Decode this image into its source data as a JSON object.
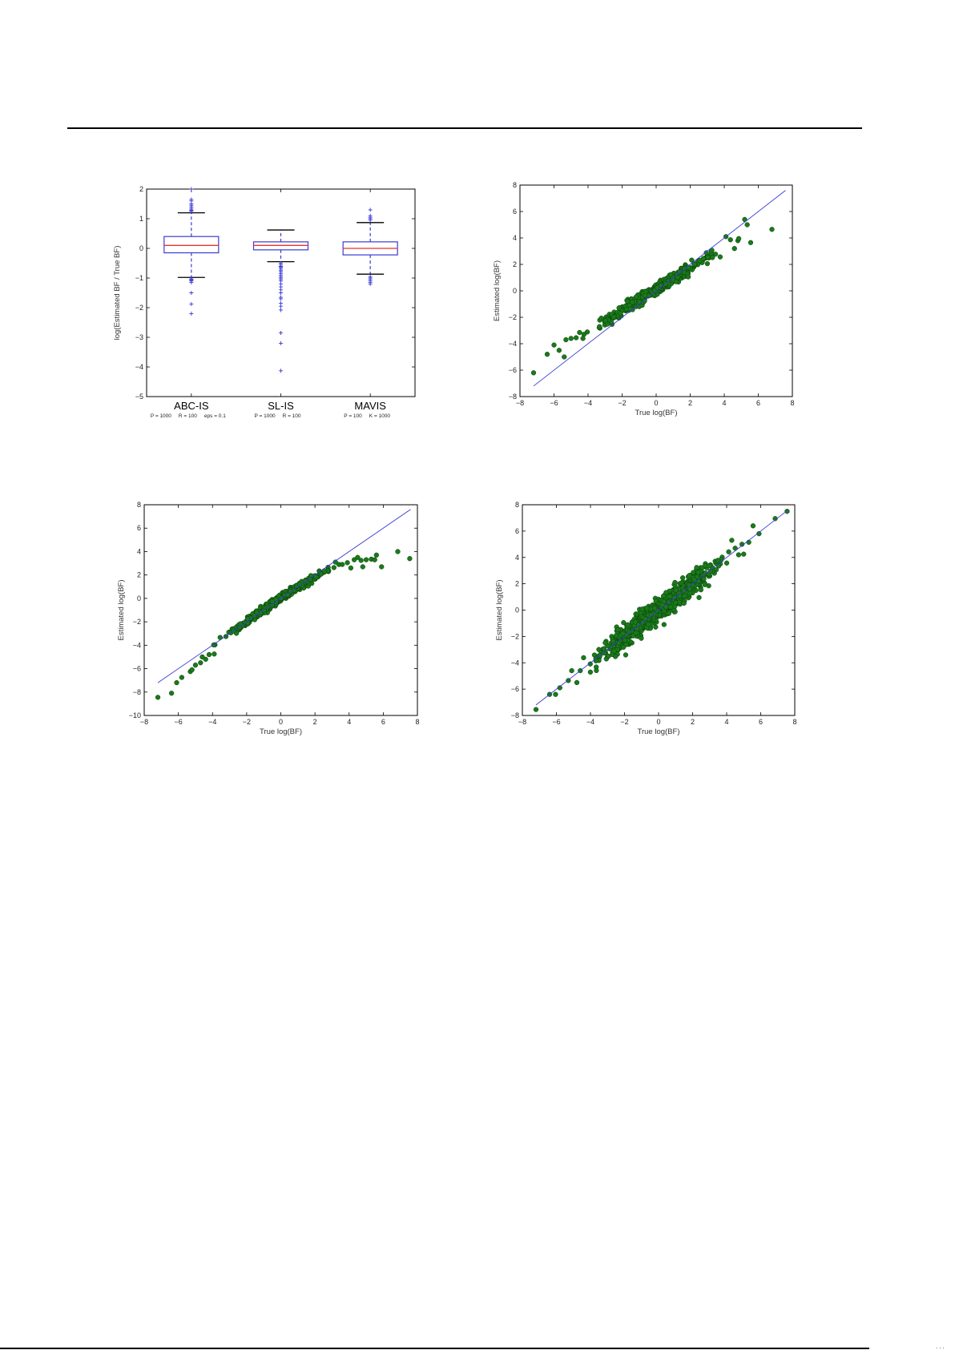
{
  "page": {
    "header_rule": true,
    "footer_rule": true,
    "page_marker": "..."
  },
  "chart_data": [
    {
      "id": "boxplot",
      "type": "box",
      "title": "",
      "xlabel": "",
      "ylabel": "log(Estimated BF / True BF)",
      "ylim": [
        -5,
        2
      ],
      "yticks": [
        -5,
        -4,
        -3,
        -2,
        -1,
        0,
        1,
        2
      ],
      "grid": false,
      "categories": [
        "ABC-IS",
        "SL-IS",
        "MAVIS"
      ],
      "params": [
        "P = 1000     R = 100     eps = 0.1",
        "P = 1000     R = 100",
        "P = 100     K = 1000"
      ],
      "colors": {
        "box": "#3a3ad6",
        "median": "#e8332c",
        "whisker_cap": "#000000",
        "flier": "#3a3ad6"
      },
      "series": [
        {
          "name": "ABC-IS",
          "q1": -0.15,
          "median": 0.1,
          "q3": 0.4,
          "whisker_low": -0.98,
          "whisker_high": 1.2,
          "fliers": [
            2.0,
            1.65,
            1.6,
            1.5,
            1.45,
            1.4,
            1.35,
            1.3,
            1.28,
            1.25,
            -1.03,
            -1.05,
            -1.08,
            -1.1,
            -1.15,
            -1.5,
            -1.88,
            -2.2
          ]
        },
        {
          "name": "SL-IS",
          "q1": -0.05,
          "median": 0.1,
          "q3": 0.22,
          "whisker_low": -0.45,
          "whisker_high": 0.62,
          "fliers": [
            -0.5,
            -0.55,
            -0.6,
            -0.62,
            -0.65,
            -0.7,
            -0.75,
            -0.8,
            -0.85,
            -0.9,
            -0.95,
            -1.0,
            -1.05,
            -1.1,
            -1.2,
            -1.3,
            -1.4,
            -1.5,
            -1.65,
            -1.7,
            -1.85,
            -1.95,
            -2.08,
            -2.85,
            -3.2,
            -4.13
          ]
        },
        {
          "name": "MAVIS",
          "q1": -0.22,
          "median": 0.0,
          "q3": 0.22,
          "whisker_low": -0.87,
          "whisker_high": 0.87,
          "fliers": [
            1.3,
            1.1,
            1.05,
            1.0,
            0.95,
            -0.95,
            -1.0,
            -1.05,
            -1.1,
            -1.15,
            -1.2
          ]
        }
      ]
    },
    {
      "id": "scatter-top-right",
      "type": "scatter",
      "title": "",
      "xlabel": "True log(BF)",
      "ylabel": "Estimated log(BF)",
      "xlim": [
        -8,
        8
      ],
      "ylim": [
        -8,
        8
      ],
      "xticks": [
        -8,
        -6,
        -4,
        -2,
        0,
        2,
        4,
        6,
        8
      ],
      "yticks": [
        -8,
        -6,
        -4,
        -2,
        0,
        2,
        4,
        6,
        8
      ],
      "grid": false,
      "reference_line": {
        "x": [
          -7.2,
          7.6
        ],
        "y": [
          -7.2,
          7.6
        ],
        "color": "#3a3ad6"
      },
      "point_color": "#1a7a1a",
      "pattern": {
        "slope_low": 0.8,
        "slope_high": 0.8,
        "intercept": 0.15,
        "noise": 0.18,
        "n": 500,
        "x_range": [
          -4,
          4
        ]
      },
      "notable_points": [
        {
          "x": -7.2,
          "y": -6.2
        },
        {
          "x": -6.4,
          "y": -4.8
        },
        {
          "x": -6.0,
          "y": -4.1
        },
        {
          "x": -5.7,
          "y": -4.5
        },
        {
          "x": -5.4,
          "y": -5.0
        },
        {
          "x": -5.3,
          "y": -3.7
        },
        {
          "x": -5.0,
          "y": -3.6
        },
        {
          "x": -4.7,
          "y": -3.55
        },
        {
          "x": -4.5,
          "y": -3.15
        },
        {
          "x": -4.3,
          "y": -3.6
        },
        {
          "x": 4.1,
          "y": 4.1
        },
        {
          "x": 4.6,
          "y": 3.2
        },
        {
          "x": 4.8,
          "y": 3.8
        },
        {
          "x": 4.85,
          "y": 3.95
        },
        {
          "x": 5.2,
          "y": 5.4
        },
        {
          "x": 5.35,
          "y": 5.0
        },
        {
          "x": 5.55,
          "y": 3.65
        },
        {
          "x": 6.8,
          "y": 4.65
        }
      ]
    },
    {
      "id": "scatter-bottom-left",
      "type": "scatter",
      "title": "",
      "xlabel": "True log(BF)",
      "ylabel": "Estimated log(BF)",
      "xlim": [
        -8,
        8
      ],
      "ylim": [
        -10,
        8
      ],
      "xticks": [
        -8,
        -6,
        -4,
        -2,
        0,
        2,
        4,
        6,
        8
      ],
      "yticks": [
        -10,
        -8,
        -6,
        -4,
        -2,
        0,
        2,
        4,
        6,
        8
      ],
      "grid": false,
      "reference_line": {
        "x": [
          -7.2,
          7.6
        ],
        "y": [
          -7.2,
          7.6
        ],
        "color": "#3a3ad6"
      },
      "point_color": "#1a7a1a",
      "pattern": {
        "slope_low": 1.05,
        "slope_high": 0.85,
        "intercept": 0.1,
        "noise": 0.14,
        "n": 550,
        "x_range": [
          -3.5,
          3.0
        ]
      },
      "notable_points": [
        {
          "x": -7.2,
          "y": -8.45
        },
        {
          "x": -6.4,
          "y": -8.1
        },
        {
          "x": -6.1,
          "y": -7.2
        },
        {
          "x": -5.8,
          "y": -6.75
        },
        {
          "x": -5.3,
          "y": -6.25
        },
        {
          "x": -5.2,
          "y": -6.1
        },
        {
          "x": -5.0,
          "y": -5.7
        },
        {
          "x": -4.7,
          "y": -5.5
        },
        {
          "x": -4.6,
          "y": -5.0
        },
        {
          "x": -4.4,
          "y": -5.2
        },
        {
          "x": -4.2,
          "y": -4.8
        },
        {
          "x": -3.9,
          "y": -4.75
        },
        {
          "x": 3.2,
          "y": 3.1
        },
        {
          "x": 3.6,
          "y": 2.9
        },
        {
          "x": 3.9,
          "y": 3.05
        },
        {
          "x": 4.1,
          "y": 2.6
        },
        {
          "x": 4.3,
          "y": 3.3
        },
        {
          "x": 4.5,
          "y": 3.5
        },
        {
          "x": 4.7,
          "y": 3.25
        },
        {
          "x": 4.8,
          "y": 2.7
        },
        {
          "x": 5.0,
          "y": 3.3
        },
        {
          "x": 5.3,
          "y": 3.35
        },
        {
          "x": 5.5,
          "y": 3.3
        },
        {
          "x": 5.6,
          "y": 3.7
        },
        {
          "x": 5.9,
          "y": 2.7
        },
        {
          "x": 6.85,
          "y": 4.0
        },
        {
          "x": 7.55,
          "y": 3.4
        }
      ]
    },
    {
      "id": "scatter-bottom-right",
      "type": "scatter",
      "title": "",
      "xlabel": "True log(BF)",
      "ylabel": "Estimated log(BF)",
      "xlim": [
        -8,
        8
      ],
      "ylim": [
        -8,
        8
      ],
      "xticks": [
        -8,
        -6,
        -4,
        -2,
        0,
        2,
        4,
        6,
        8
      ],
      "yticks": [
        -8,
        -6,
        -4,
        -2,
        0,
        2,
        4,
        6,
        8
      ],
      "grid": false,
      "reference_line": {
        "x": [
          -7.2,
          7.6
        ],
        "y": [
          -7.2,
          7.6
        ],
        "color": "#3a3ad6"
      },
      "point_color": "#1a7a1a",
      "pattern": {
        "slope_low": 1.0,
        "slope_high": 1.0,
        "intercept": 0.0,
        "noise": 0.38,
        "n": 900,
        "x_range": [
          -4,
          4
        ]
      },
      "notable_points": [
        {
          "x": -7.2,
          "y": -7.55
        },
        {
          "x": -6.4,
          "y": -6.4
        },
        {
          "x": -6.05,
          "y": -6.4
        },
        {
          "x": -5.8,
          "y": -5.9
        },
        {
          "x": -5.3,
          "y": -5.35
        },
        {
          "x": -5.1,
          "y": -4.6
        },
        {
          "x": -4.8,
          "y": -5.5
        },
        {
          "x": -4.6,
          "y": -4.6
        },
        {
          "x": 4.3,
          "y": 5.3
        },
        {
          "x": 4.5,
          "y": 4.7
        },
        {
          "x": 4.7,
          "y": 4.2
        },
        {
          "x": 4.9,
          "y": 5.0
        },
        {
          "x": 5.0,
          "y": 4.25
        },
        {
          "x": 5.3,
          "y": 5.15
        },
        {
          "x": 5.55,
          "y": 6.4
        },
        {
          "x": 5.9,
          "y": 5.8
        },
        {
          "x": 6.85,
          "y": 6.95
        },
        {
          "x": 7.55,
          "y": 7.5
        }
      ]
    }
  ]
}
